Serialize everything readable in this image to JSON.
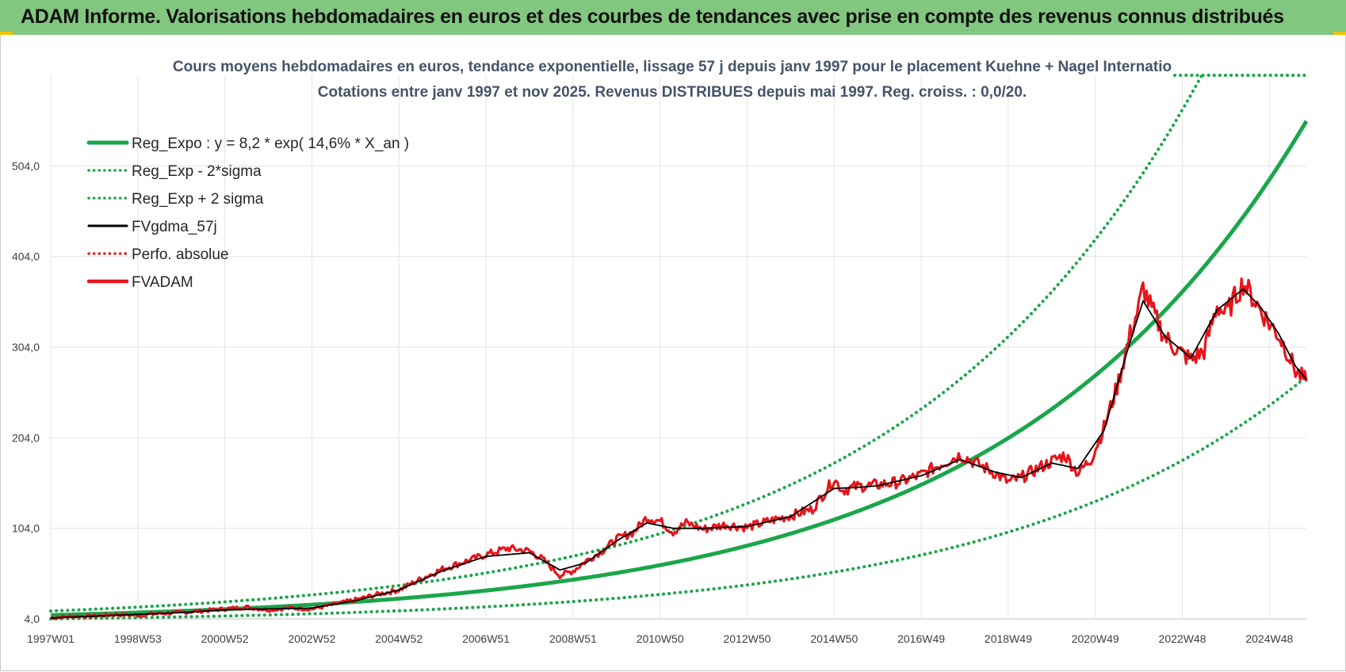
{
  "banner": {
    "title": "ADAM Informe. Valorisations hebdomadaires en euros et des courbes de tendances avec prise en compte des revenus connus distribués"
  },
  "chart_data": {
    "type": "line",
    "title_lines": [
      "Cours moyens hebdomadaires en euros, tendance exponentielle, lissage 57 j depuis janv 1997 pour le placement Kuehne + Nagel Internatio",
      "Cotations entre janv 1997 et nov 2025. Revenus DISTRIBUES depuis mai 1997. Reg. croiss. : 0,0/20."
    ],
    "x_ticks": [
      "1997W01",
      "1998W53",
      "2000W52",
      "2002W52",
      "2004W52",
      "2006W51",
      "2008W51",
      "2010W50",
      "2012W50",
      "2014W50",
      "2016W49",
      "2018W49",
      "2020W49",
      "2022W48",
      "2024W48"
    ],
    "y_ticks": [
      "4,0",
      "104,0",
      "204,0",
      "304,0",
      "404,0",
      "504,0"
    ],
    "ylim": [
      4,
      604
    ],
    "xlim": [
      1997.0,
      2025.85
    ],
    "grid": true,
    "legend_position": "top-left",
    "legend": [
      {
        "label": "Reg_Expo : y = 8,2 * exp( 14,6% *  X_an )",
        "color": "#1aa64a",
        "style": "solid-thick"
      },
      {
        "label": "Reg_Exp - 2*sigma",
        "color": "#1aa64a",
        "style": "dotted"
      },
      {
        "label": "Reg_Exp + 2 sigma",
        "color": "#1aa64a",
        "style": "dotted"
      },
      {
        "label": "FVgdma_57j",
        "color": "#000000",
        "style": "solid"
      },
      {
        "label": "Perfo. absolue",
        "color": "#e0211c",
        "style": "dotted"
      },
      {
        "label": "FVADAM",
        "color": "#e8141b",
        "style": "solid-thick"
      }
    ],
    "regression": {
      "a": 8.2,
      "growth": 0.146,
      "x0": 1997.0,
      "band_lower_factor": 0.49,
      "band_upper_factor": 1.55,
      "y_cap": 604
    },
    "series": [
      {
        "name": "FVADAM",
        "points": [
          [
            1997.0,
            5
          ],
          [
            1997.5,
            7
          ],
          [
            1998.0,
            7
          ],
          [
            1998.5,
            9
          ],
          [
            1999.0,
            8
          ],
          [
            1999.5,
            10
          ],
          [
            2000.0,
            11
          ],
          [
            2000.5,
            13
          ],
          [
            2001.0,
            15
          ],
          [
            2001.5,
            17
          ],
          [
            2002.0,
            14
          ],
          [
            2002.5,
            16
          ],
          [
            2003.0,
            15
          ],
          [
            2003.5,
            20
          ],
          [
            2004.0,
            25
          ],
          [
            2004.5,
            31
          ],
          [
            2005.0,
            36
          ],
          [
            2005.5,
            48
          ],
          [
            2006.0,
            59
          ],
          [
            2006.5,
            67
          ],
          [
            2007.0,
            75
          ],
          [
            2007.5,
            82
          ],
          [
            2008.0,
            79
          ],
          [
            2008.3,
            70
          ],
          [
            2008.7,
            52
          ],
          [
            2009.0,
            57
          ],
          [
            2009.3,
            68
          ],
          [
            2009.7,
            80
          ],
          [
            2010.0,
            92
          ],
          [
            2010.4,
            100
          ],
          [
            2010.7,
            116
          ],
          [
            2011.0,
            112
          ],
          [
            2011.3,
            100
          ],
          [
            2011.6,
            110
          ],
          [
            2012.0,
            103
          ],
          [
            2012.5,
            108
          ],
          [
            2013.0,
            105
          ],
          [
            2013.5,
            112
          ],
          [
            2014.0,
            118
          ],
          [
            2014.5,
            125
          ],
          [
            2015.0,
            158
          ],
          [
            2015.2,
            146
          ],
          [
            2015.5,
            150
          ],
          [
            2016.0,
            152
          ],
          [
            2016.5,
            155
          ],
          [
            2017.0,
            163
          ],
          [
            2017.5,
            176
          ],
          [
            2017.9,
            185
          ],
          [
            2018.3,
            175
          ],
          [
            2018.7,
            165
          ],
          [
            2019.0,
            155
          ],
          [
            2019.3,
            160
          ],
          [
            2019.6,
            168
          ],
          [
            2020.0,
            178
          ],
          [
            2020.3,
            185
          ],
          [
            2020.6,
            165
          ],
          [
            2020.9,
            180
          ],
          [
            2021.2,
            215
          ],
          [
            2021.5,
            260
          ],
          [
            2021.8,
            318
          ],
          [
            2022.0,
            348
          ],
          [
            2022.1,
            370
          ],
          [
            2022.3,
            345
          ],
          [
            2022.6,
            315
          ],
          [
            2022.9,
            300
          ],
          [
            2023.2,
            290
          ],
          [
            2023.5,
            300
          ],
          [
            2023.8,
            350
          ],
          [
            2024.0,
            340
          ],
          [
            2024.2,
            358
          ],
          [
            2024.4,
            375
          ],
          [
            2024.6,
            360
          ],
          [
            2024.8,
            345
          ],
          [
            2025.0,
            330
          ],
          [
            2025.2,
            318
          ],
          [
            2025.4,
            300
          ],
          [
            2025.6,
            278
          ],
          [
            2025.85,
            266
          ]
        ]
      },
      {
        "name": "FVgdma_57j",
        "points": [
          [
            1997.0,
            5
          ],
          [
            1998.0,
            7
          ],
          [
            1999.0,
            9
          ],
          [
            2000.0,
            11
          ],
          [
            2001.0,
            14
          ],
          [
            2002.0,
            15
          ],
          [
            2003.0,
            16
          ],
          [
            2004.0,
            24
          ],
          [
            2005.0,
            36
          ],
          [
            2006.0,
            57
          ],
          [
            2007.0,
            73
          ],
          [
            2008.0,
            77
          ],
          [
            2008.7,
            58
          ],
          [
            2009.3,
            66
          ],
          [
            2010.0,
            90
          ],
          [
            2010.7,
            110
          ],
          [
            2011.3,
            104
          ],
          [
            2012.0,
            104
          ],
          [
            2013.0,
            106
          ],
          [
            2014.0,
            117
          ],
          [
            2015.0,
            148
          ],
          [
            2015.5,
            149
          ],
          [
            2016.0,
            151
          ],
          [
            2017.0,
            162
          ],
          [
            2017.9,
            180
          ],
          [
            2018.7,
            166
          ],
          [
            2019.3,
            160
          ],
          [
            2020.0,
            176
          ],
          [
            2020.6,
            170
          ],
          [
            2021.2,
            212
          ],
          [
            2021.8,
            310
          ],
          [
            2022.1,
            355
          ],
          [
            2022.6,
            316
          ],
          [
            2023.2,
            292
          ],
          [
            2023.8,
            345
          ],
          [
            2024.4,
            368
          ],
          [
            2024.8,
            348
          ],
          [
            2025.2,
            320
          ],
          [
            2025.6,
            283
          ],
          [
            2025.85,
            268
          ]
        ]
      }
    ]
  }
}
